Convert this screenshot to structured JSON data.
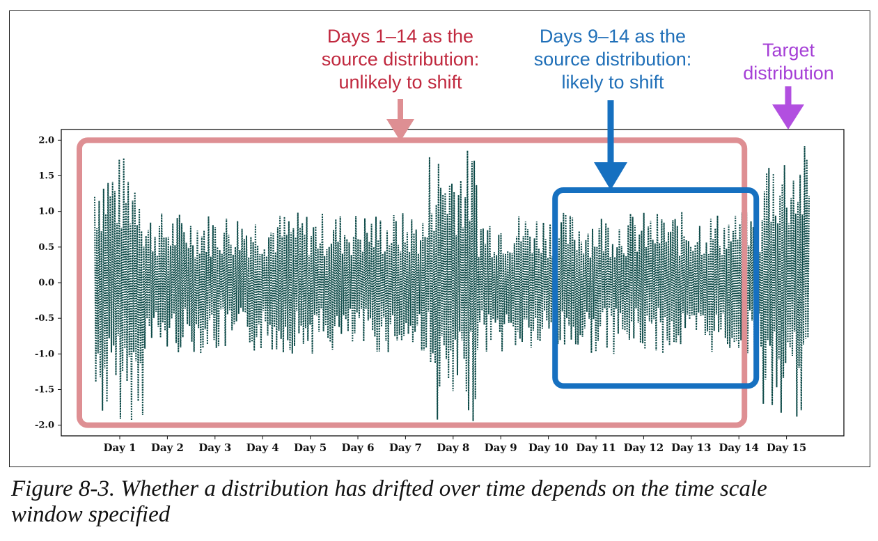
{
  "annotations": {
    "source_long": [
      "Days 1–14 as the",
      "source distribution:",
      "unlikely to shift"
    ],
    "source_short": [
      "Days 9–14 as the",
      "source distribution:",
      "likely to shift"
    ],
    "target": [
      "Target",
      "distribution"
    ]
  },
  "caption": [
    "Figure 8-3. Whether a distribution has drifted over time depends on the time scale",
    "window specified"
  ],
  "colors": {
    "series": "#0d4a48",
    "source_long_box": "#de8f93",
    "source_long_text": "#c0283e",
    "source_short_box": "#1670c0",
    "source_short_text": "#1f6fb8",
    "target_box": "#b24fe0",
    "target_text": "#a53fd6"
  },
  "chart_data": {
    "type": "line",
    "line_style": "dotted",
    "title": "",
    "xlabel": "",
    "ylabel": "",
    "ylim": [
      -2.15,
      2.15
    ],
    "y_ticks": [
      "2.0",
      "1.5",
      "1.0",
      "0.5",
      "0.0",
      "-0.5",
      "-1.0",
      "-1.5",
      "-2.0"
    ],
    "categories": [
      "Day 1",
      "Day 2",
      "Day 3",
      "Day 4",
      "Day 5",
      "Day 6",
      "Day 7",
      "Day 8",
      "Day 9",
      "Day 10",
      "Day 11",
      "Day 12",
      "Day 13",
      "Day 14",
      "Day 15"
    ],
    "days": [
      {
        "day": "Day 1",
        "range": [
          -1.95,
          1.8
        ]
      },
      {
        "day": "Day 2",
        "range": [
          -1.0,
          1.0
        ]
      },
      {
        "day": "Day 3",
        "range": [
          -1.0,
          1.0
        ]
      },
      {
        "day": "Day 4",
        "range": [
          -1.0,
          1.0
        ]
      },
      {
        "day": "Day 5",
        "range": [
          -1.0,
          1.0
        ]
      },
      {
        "day": "Day 6",
        "range": [
          -1.0,
          1.0
        ]
      },
      {
        "day": "Day 7",
        "range": [
          -1.0,
          1.0
        ]
      },
      {
        "day": "Day 8",
        "range": [
          -1.95,
          1.9
        ]
      },
      {
        "day": "Day 9",
        "range": [
          -1.0,
          1.0
        ]
      },
      {
        "day": "Day 10",
        "range": [
          -1.0,
          1.0
        ]
      },
      {
        "day": "Day 11",
        "range": [
          -1.0,
          1.0
        ]
      },
      {
        "day": "Day 12",
        "range": [
          -1.0,
          1.0
        ]
      },
      {
        "day": "Day 13",
        "range": [
          -1.0,
          1.0
        ]
      },
      {
        "day": "Day 14",
        "range": [
          -1.0,
          1.0
        ]
      },
      {
        "day": "Day 15",
        "range": [
          -1.95,
          1.95
        ]
      }
    ],
    "highlight_windows": [
      {
        "label": "source_long",
        "days": [
          "Day 1",
          "Day 14"
        ],
        "y": [
          -2.0,
          2.0
        ]
      },
      {
        "label": "source_short",
        "days": [
          "Day 9",
          "Day 14"
        ],
        "y": [
          -1.45,
          1.3
        ]
      },
      {
        "label": "target",
        "days": [
          "Day 15",
          "Day 15"
        ],
        "y": [
          -2.0,
          2.15
        ]
      }
    ],
    "grid": false,
    "legend": "none"
  }
}
